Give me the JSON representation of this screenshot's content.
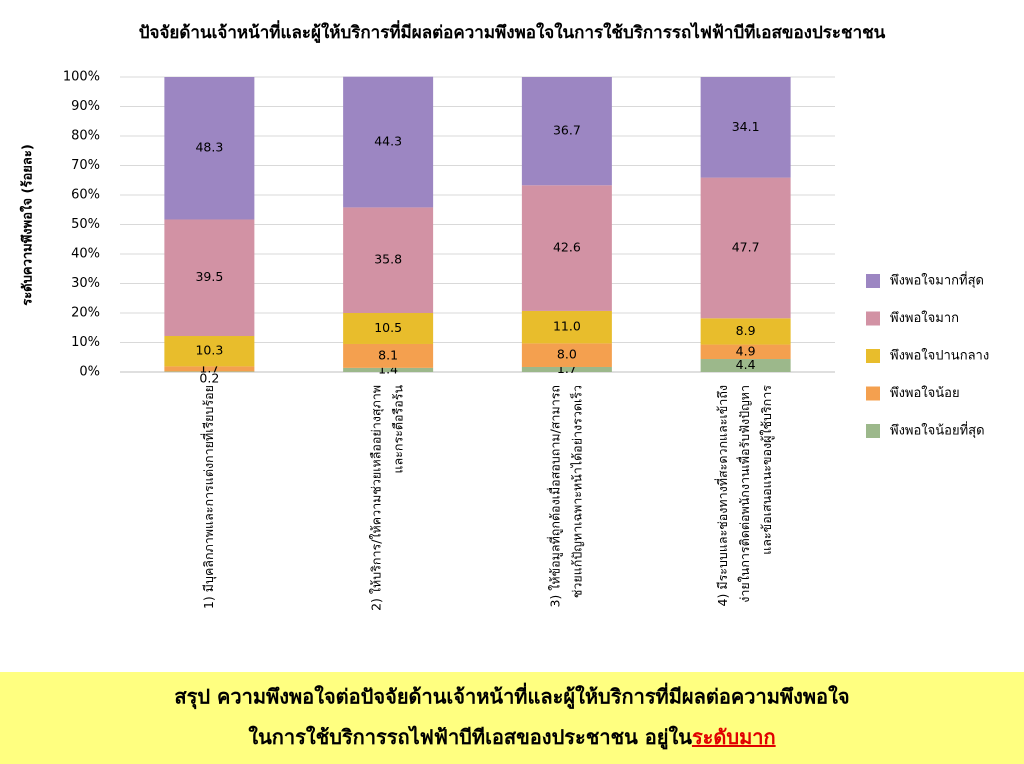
{
  "chart_data": {
    "type": "stacked_bar",
    "title": "ปัจจัยด้านเจ้าหน้าที่และผู้ให้บริการที่มีผลต่อความพึงพอใจในการใช้บริการรถไฟฟ้าบีทีเอสของประชาชน",
    "y_label": "ระดับความพึงพอใจ (ร้อยละ)",
    "categories": [
      [
        "1) มีบุคลิกภาพและการแต่งกายที่เรียบร้อย"
      ],
      [
        "2) ให้บริการ/ให้ความช่วยเหลืออย่างสุภาพ",
        "และกระตือรือร้น"
      ],
      [
        "3) ให้ข้อมูลที่ถูกต้องเมื่อสอบถาม/สามารถ",
        "ช่วยแก้ปัญหาเฉพาะหน้าได้อย่างรวดเร็ว"
      ],
      [
        "4) มีระบบและช่องทางที่สะดวกและเข้าถึง",
        "ง่ายในการติดต่อพนักงานเพื่อรับฟังปัญหา",
        "และข้อเสนอแนะของผู้ใช้บริการ"
      ]
    ],
    "series": [
      {
        "name": "พึงพอใจน้อยที่สุด",
        "color": "#9cb88b",
        "values": [
          0.2,
          1.4,
          1.7,
          4.4
        ],
        "value_labels": [
          "0.2",
          "1.4",
          "1.7",
          "4.4"
        ]
      },
      {
        "name": "พึงพอใจน้อย",
        "color": "#f4a04f",
        "values": [
          1.7,
          8.1,
          8.0,
          4.9
        ],
        "value_labels": [
          "1.7",
          "8.1",
          "8.0",
          "4.9"
        ]
      },
      {
        "name": "พึงพอใจปานกลาง",
        "color": "#e8bd2c",
        "values": [
          10.3,
          10.5,
          11.0,
          8.9
        ],
        "value_labels": [
          "10.3",
          "10.5",
          "11.0",
          "8.9"
        ]
      },
      {
        "name": "พึงพอใจมาก",
        "color": "#d292a4",
        "values": [
          39.5,
          35.8,
          42.6,
          47.7
        ],
        "value_labels": [
          "39.5",
          "35.8",
          "42.6",
          "47.7"
        ]
      },
      {
        "name": "พึงพอใจมากที่สุด",
        "color": "#9c86c2",
        "values": [
          48.3,
          44.3,
          36.7,
          34.1
        ],
        "value_labels": [
          "48.3",
          "44.3",
          "36.7",
          "34.1"
        ]
      }
    ],
    "ylim": [
      0,
      100
    ],
    "yticks": [
      {
        "value": 0,
        "label": "0%"
      },
      {
        "value": 10,
        "label": "10%"
      },
      {
        "value": 20,
        "label": "20%"
      },
      {
        "value": 30,
        "label": "30%"
      },
      {
        "value": 40,
        "label": "40%"
      },
      {
        "value": 50,
        "label": "50%"
      },
      {
        "value": 60,
        "label": "60%"
      },
      {
        "value": 70,
        "label": "70%"
      },
      {
        "value": 80,
        "label": "80%"
      },
      {
        "value": 90,
        "label": "90%"
      },
      {
        "value": 100,
        "label": "100%"
      }
    ],
    "grid": true,
    "legend": "right"
  },
  "summary": {
    "line1": "สรุป ความพึงพอใจต่อปัจจัยด้านเจ้าหน้าที่และผู้ให้บริการที่มีผลต่อความพึงพอใจ",
    "line2": "ในการใช้บริการรถไฟฟ้าบีทีเอสของประชาชน อยู่ใน",
    "highlight": "ระดับมาก"
  }
}
